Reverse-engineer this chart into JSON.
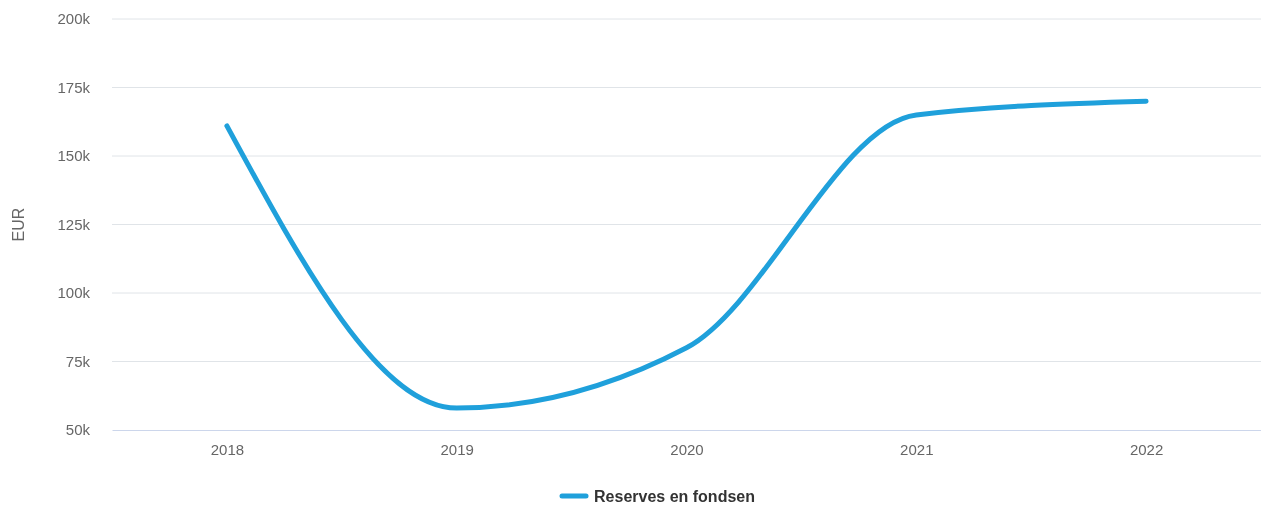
{
  "chart_data": {
    "type": "line",
    "ylabel": "EUR",
    "categories": [
      "2018",
      "2019",
      "2020",
      "2021",
      "2022"
    ],
    "series": [
      {
        "name": "Reserves en fondsen",
        "color": "#1fa0db",
        "values": [
          161000,
          58000,
          80000,
          165000,
          170000
        ]
      }
    ],
    "ylim": [
      50000,
      200000
    ],
    "yticks": [
      {
        "value": 50000,
        "label": "50k"
      },
      {
        "value": 75000,
        "label": "75k"
      },
      {
        "value": 100000,
        "label": "100k"
      },
      {
        "value": 125000,
        "label": "125k"
      },
      {
        "value": 150000,
        "label": "150k"
      },
      {
        "value": 175000,
        "label": "175k"
      },
      {
        "value": 200000,
        "label": "200k"
      }
    ],
    "grid": "y",
    "legend": "bottom",
    "line_style": "solid",
    "marker": "none"
  }
}
